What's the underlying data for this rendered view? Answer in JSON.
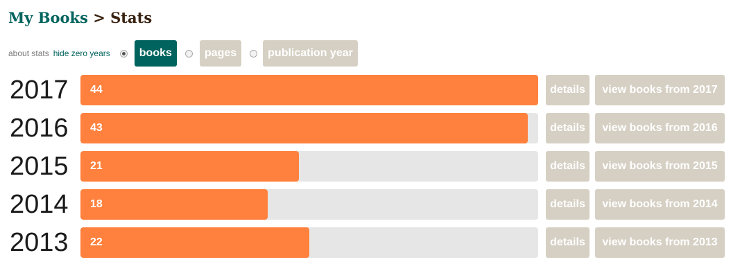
{
  "breadcrumb": {
    "parent": "My Books",
    "separator": ">",
    "current": "Stats"
  },
  "controls": {
    "about_stats": "about stats",
    "hide_zero_years": "hide zero years",
    "tabs": [
      {
        "label": "books",
        "selected": true
      },
      {
        "label": "pages",
        "selected": false
      },
      {
        "label": "publication year",
        "selected": false
      }
    ]
  },
  "colors": {
    "brand": "#00635d",
    "bar": "#ff813d",
    "track": "#e6e6e6",
    "button": "#d6d0c4"
  },
  "scale_max": 44,
  "rows": [
    {
      "year": "2017",
      "count": 44,
      "count_label": "44",
      "details": "details",
      "view": "view books from 2017"
    },
    {
      "year": "2016",
      "count": 43,
      "count_label": "43",
      "details": "details",
      "view": "view books from 2016"
    },
    {
      "year": "2015",
      "count": 21,
      "count_label": "21",
      "details": "details",
      "view": "view books from 2015"
    },
    {
      "year": "2014",
      "count": 18,
      "count_label": "18",
      "details": "details",
      "view": "view books from 2014"
    },
    {
      "year": "2013",
      "count": 22,
      "count_label": "22",
      "details": "details",
      "view": "view books from 2013"
    }
  ]
}
